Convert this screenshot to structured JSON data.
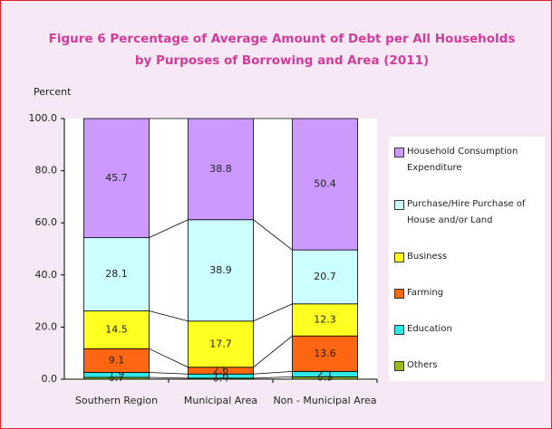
{
  "chart_data": {
    "type": "stacked_bar",
    "title": [
      "Figure  6   Percentage of Average Amount of Debt per All Households",
      "by Purposes of  Borrowing and Area (2011)"
    ],
    "y_label": "Percent",
    "categories": [
      "Southern Region",
      "Municipal Area",
      "Non - Municipal Area"
    ],
    "series": [
      {
        "name": "Others",
        "color": "#99bb22",
        "values": [
          0.7,
          0.4,
          0.9
        ]
      },
      {
        "name": "Education",
        "color": "#33e6e6",
        "values": [
          1.9,
          1.6,
          2.1
        ]
      },
      {
        "name": "Farming",
        "color": "#ff6611",
        "values": [
          9.1,
          2.6,
          13.6
        ]
      },
      {
        "name": "Business",
        "color": "#ffff22",
        "values": [
          14.5,
          17.7,
          12.3
        ]
      },
      {
        "name": "Purchase/Hire Purchase of House and/or Land",
        "color": "#ccffff",
        "values": [
          28.1,
          38.9,
          20.7
        ]
      },
      {
        "name": "Household Consumption Expenditure",
        "color": "#cc99ff",
        "values": [
          45.7,
          38.8,
          50.4
        ]
      }
    ],
    "ylim": [
      0,
      100
    ],
    "yticks": [
      {
        "value": 0,
        "label": "0.0"
      },
      {
        "value": 20,
        "label": "20.0"
      },
      {
        "value": 40,
        "label": "40.0"
      },
      {
        "value": 60,
        "label": "60.0"
      },
      {
        "value": 80,
        "label": "80.0"
      },
      {
        "value": 100,
        "label": "100.0"
      }
    ],
    "legend": "right"
  }
}
